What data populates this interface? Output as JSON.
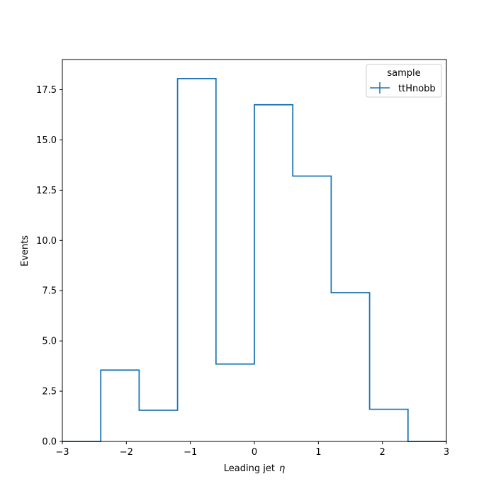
{
  "chart_data": {
    "type": "histogram-step",
    "xlabel": "Leading jet",
    "xlabel_symbol": "η",
    "ylabel": "Events",
    "xlim": [
      -3,
      3
    ],
    "ylim": [
      0,
      19
    ],
    "x_ticks": [
      -3,
      -2,
      -1,
      0,
      1,
      2,
      3
    ],
    "x_tick_labels": [
      "−3",
      "−2",
      "−1",
      "0",
      "1",
      "2",
      "3"
    ],
    "y_ticks": [
      0,
      2.5,
      5,
      7.5,
      10,
      12.5,
      15,
      17.5
    ],
    "y_tick_labels": [
      "0.0",
      "2.5",
      "5.0",
      "7.5",
      "10.0",
      "12.5",
      "15.0",
      "17.5"
    ],
    "bin_edges": [
      -3.0,
      -2.4,
      -1.8,
      -1.2,
      -0.6,
      0.0,
      0.6,
      1.2,
      1.8,
      2.4,
      3.0
    ],
    "series": [
      {
        "name": "ttHnobb",
        "color": "#1f77b4",
        "values": [
          0.0,
          3.55,
          1.55,
          18.05,
          3.85,
          16.75,
          13.2,
          7.4,
          1.6,
          0.0
        ]
      }
    ],
    "legend": {
      "title": "sample",
      "placement": "top-right"
    },
    "grid": false
  }
}
